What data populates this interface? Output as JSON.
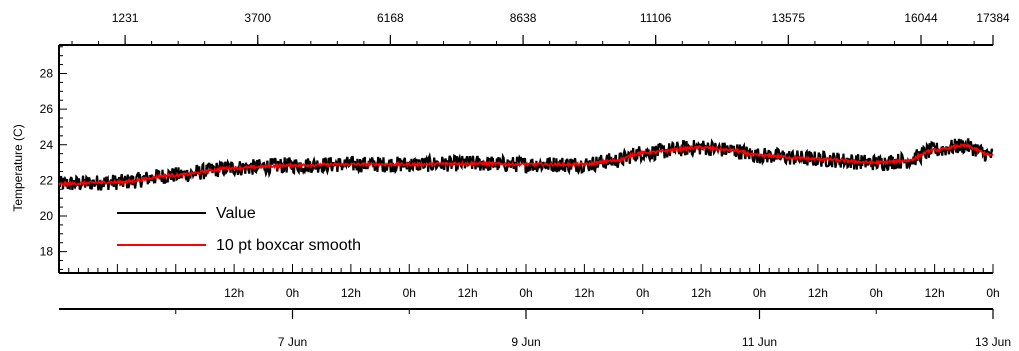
{
  "chart_data": {
    "type": "line",
    "ylabel": "Temperature (C)",
    "ylim": [
      16.8,
      29.6
    ],
    "y_ticks": [
      "18",
      "20",
      "22",
      "24",
      "26",
      "28"
    ],
    "top_axis": {
      "range": [
        1,
        17384
      ],
      "tick_values": [
        1231,
        3700,
        6168,
        8638,
        11106,
        13575,
        16044,
        17384
      ],
      "tick_labels": [
        "1231",
        "3700",
        "6168",
        "8638",
        "11106",
        "13575",
        "16044",
        "17384"
      ]
    },
    "time_axis": {
      "start": "5 Jun 00:00",
      "end": "13 Jun 00:00",
      "hour_tick_labels": [
        "12h",
        "0h",
        "12h",
        "0h",
        "12h",
        "0h",
        "12h",
        "0h",
        "12h",
        "0h",
        "12h",
        "0h",
        "12h",
        "0h"
      ],
      "date_tick_labels": [
        "7 Jun",
        "9 Jun",
        "11 Jun",
        "13 Jun"
      ]
    },
    "series": [
      {
        "name": "Value",
        "color": "#000000",
        "description": "raw temperature trace",
        "noise": 0.45
      },
      {
        "name": "10 pt boxcar smooth",
        "color": "#ff0000",
        "noise": 0.08
      }
    ],
    "trend": [
      [
        "5 Jun 00:00",
        21.8
      ],
      [
        "5 Jun 12:00",
        21.9
      ],
      [
        "6 Jun 00:00",
        22.3
      ],
      [
        "6 Jun 12:00",
        22.7
      ],
      [
        "7 Jun 00:00",
        22.85
      ],
      [
        "7 Jun 12:00",
        22.9
      ],
      [
        "8 Jun 00:00",
        22.9
      ],
      [
        "8 Jun 12:00",
        22.95
      ],
      [
        "9 Jun 00:00",
        22.9
      ],
      [
        "9 Jun 12:00",
        22.9
      ],
      [
        "9 Jun 18:00",
        23.1
      ],
      [
        "10 Jun 00:00",
        23.55
      ],
      [
        "10 Jun 12:00",
        23.85
      ],
      [
        "10 Jun 18:00",
        23.7
      ],
      [
        "11 Jun 00:00",
        23.4
      ],
      [
        "11 Jun 12:00",
        23.2
      ],
      [
        "12 Jun 00:00",
        23.0
      ],
      [
        "12 Jun 06:00",
        23.1
      ],
      [
        "12 Jun 12:00",
        23.7
      ],
      [
        "12 Jun 18:00",
        23.95
      ],
      [
        "13 Jun 00:00",
        23.4
      ]
    ],
    "legend": {
      "placement": "bottom-left",
      "entries": [
        "Value",
        "10 pt boxcar smooth"
      ]
    },
    "grid": false
  }
}
